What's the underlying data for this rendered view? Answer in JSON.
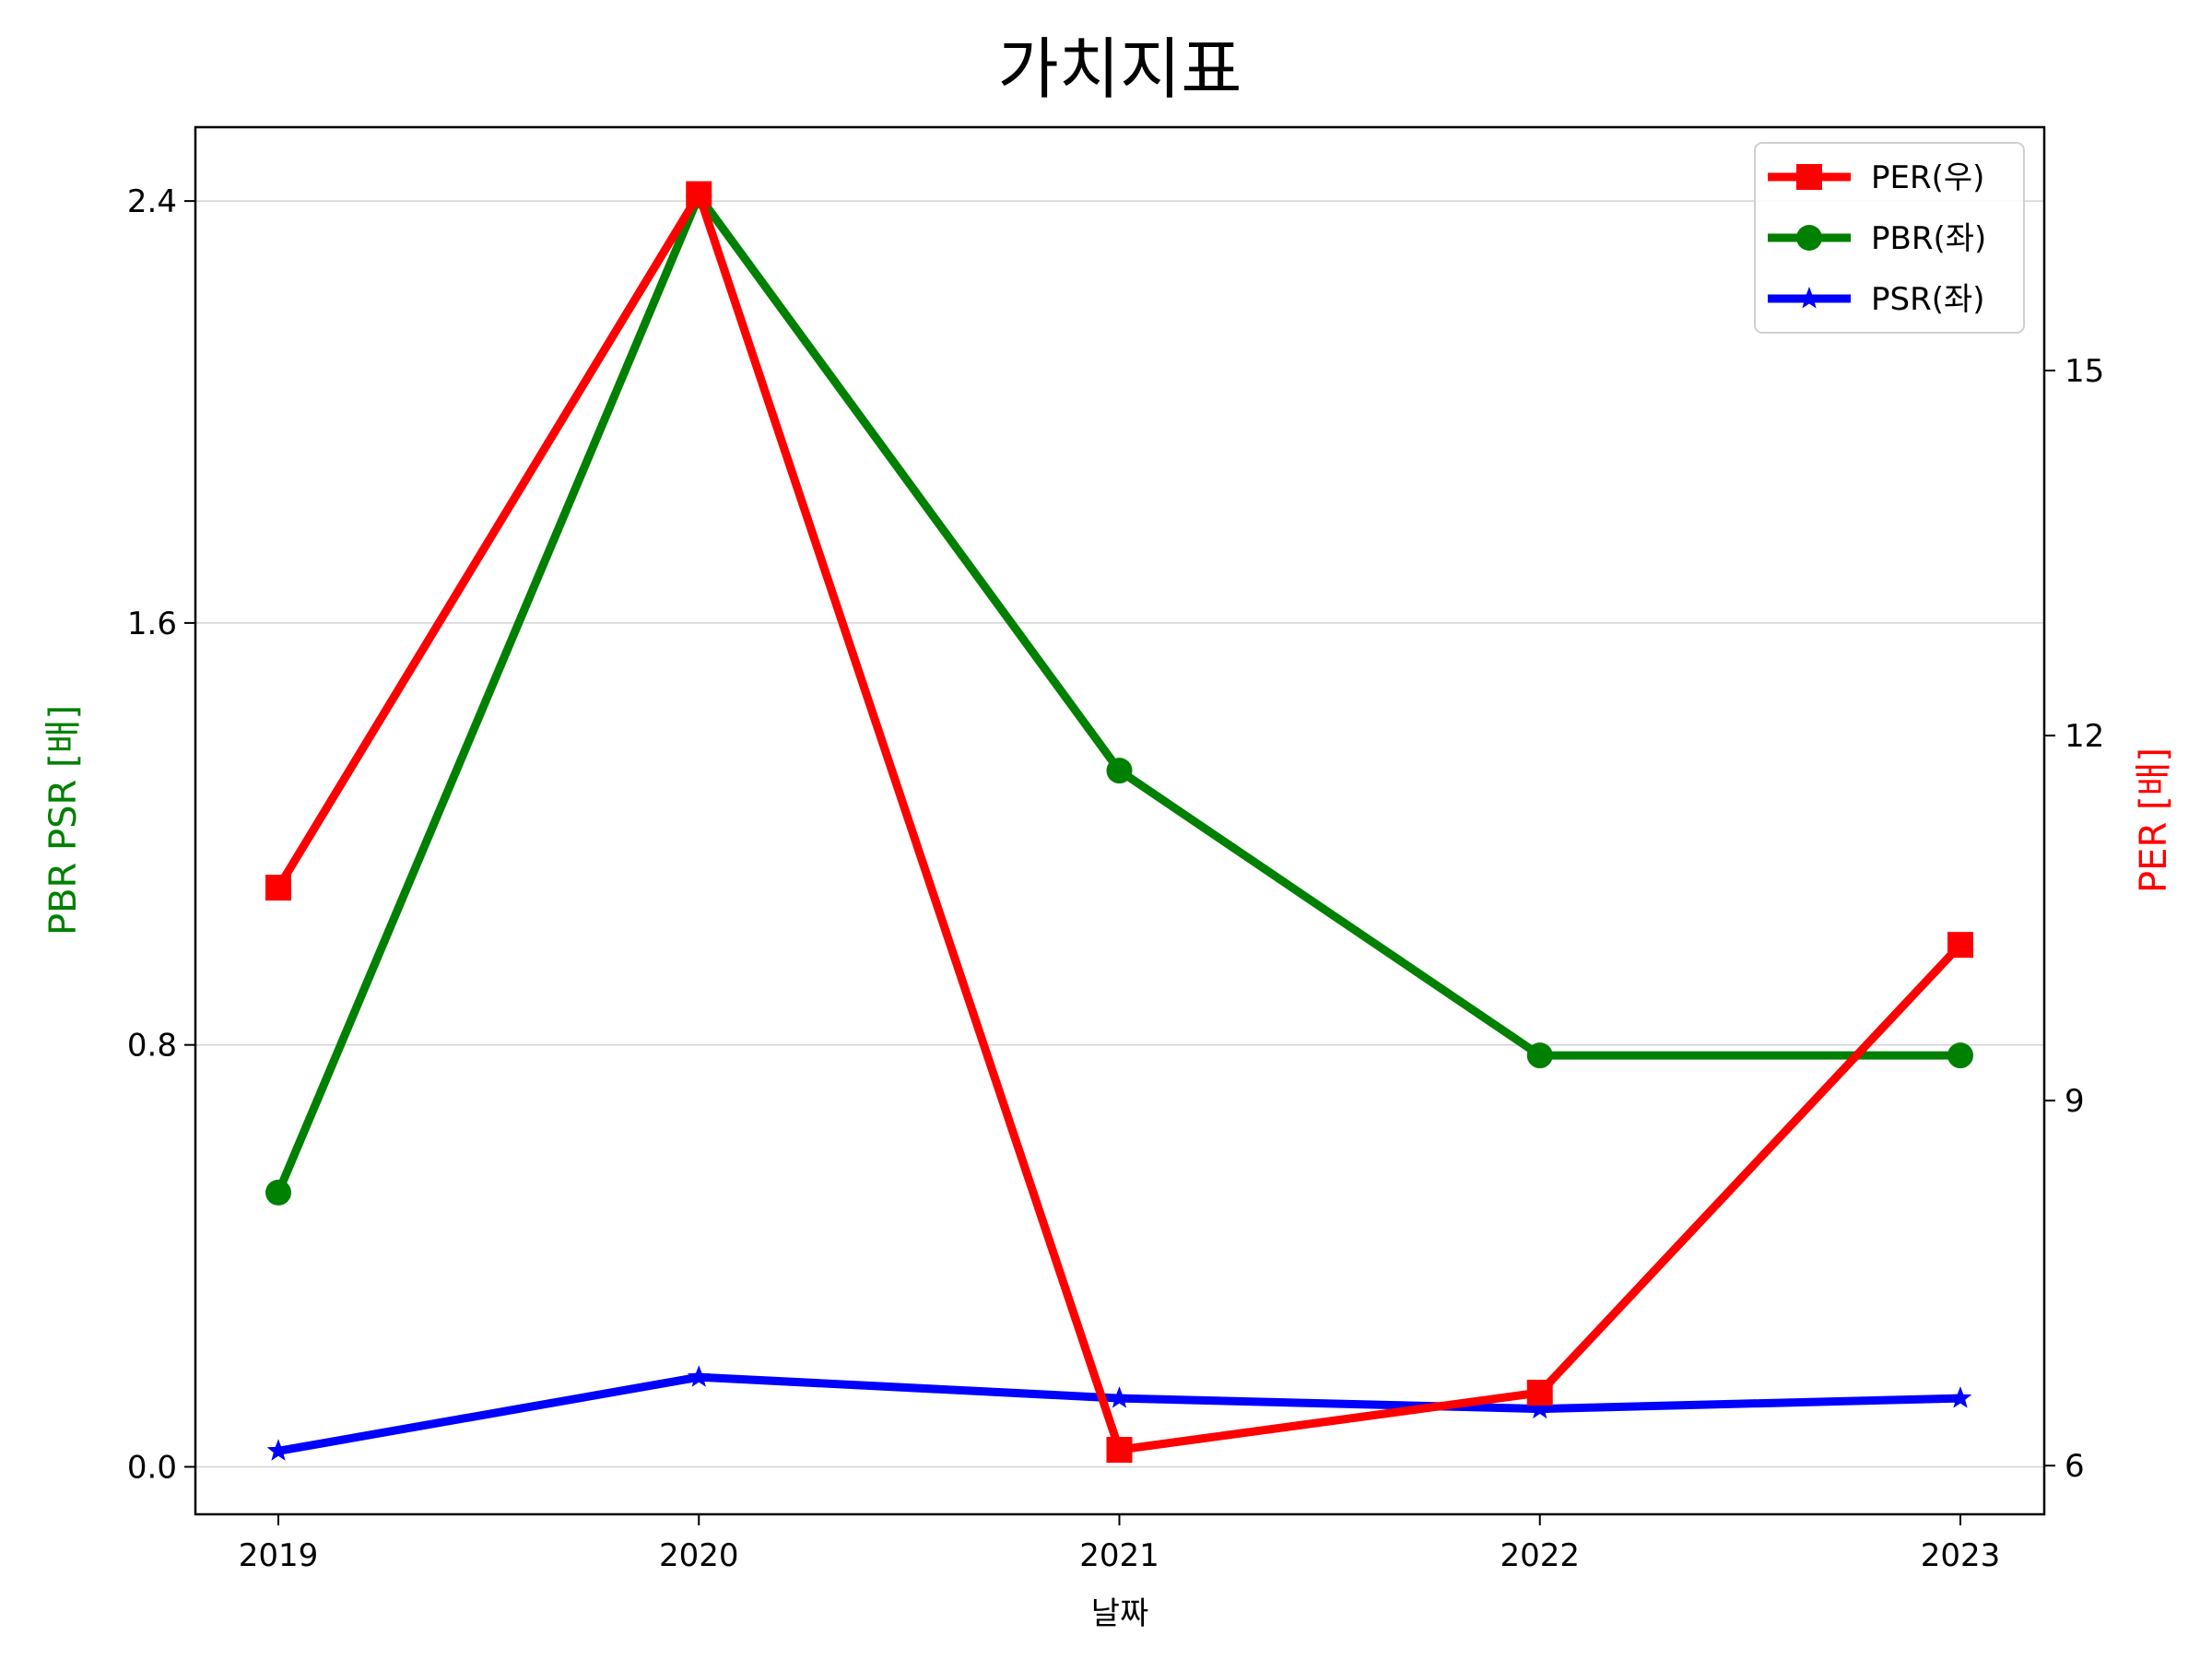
{
  "chart_data": {
    "type": "line",
    "title": "가치지표",
    "xlabel": "날짜",
    "ylabel_left": "PBR PSR [배]",
    "ylabel_right": "PER [배]",
    "x": [
      "2019",
      "2020",
      "2021",
      "2022",
      "2023"
    ],
    "y_left_ticks": [
      "0.0",
      "0.8",
      "1.6",
      "2.4"
    ],
    "y_right_ticks": [
      "6",
      "9",
      "12",
      "15"
    ],
    "y_left_range": [
      -0.09,
      2.54
    ],
    "y_right_range": [
      5.6,
      17.0
    ],
    "grid": "horizontal (left axis)",
    "legend_position": "top-right",
    "series": [
      {
        "name": "PER(우)",
        "axis": "right",
        "color": "#ff0000",
        "marker": "square",
        "values": [
          10.75,
          16.45,
          6.13,
          6.6,
          10.28
        ]
      },
      {
        "name": "PBR(좌)",
        "axis": "left",
        "color": "#008000",
        "marker": "circle",
        "values": [
          0.52,
          2.41,
          1.32,
          0.78,
          0.78
        ]
      },
      {
        "name": "PSR(좌)",
        "axis": "left",
        "color": "#0000ff",
        "marker": "star",
        "values": [
          0.03,
          0.17,
          0.13,
          0.11,
          0.13
        ]
      }
    ]
  }
}
